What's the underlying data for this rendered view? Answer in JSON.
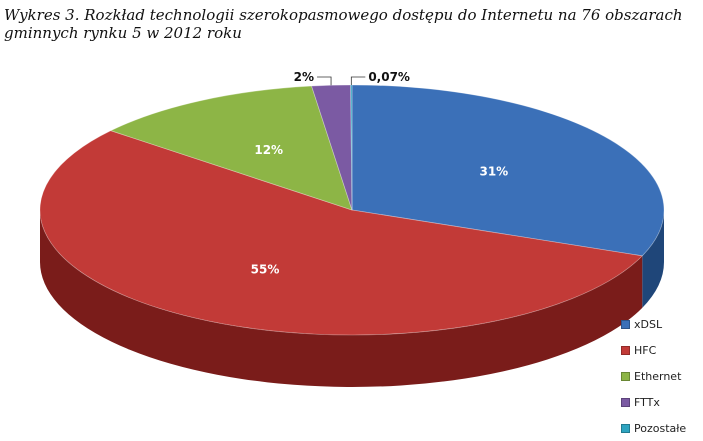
{
  "caption": "Wykres 3. Rozkład technologii szerokopasmowego dostępu do Internetu na 76 obszarach gminnych rynku 5 w 2012 roku",
  "chart_data": {
    "type": "pie",
    "title": "Wykres 3. Rozkład technologii szerokopasmowego dostępu do Internetu na 76 obszarach gminnych rynku 5 w 2012 roku",
    "labels": [
      "xDSL",
      "HFC",
      "Ethernet",
      "FTTx",
      "Pozostałe"
    ],
    "values": [
      31,
      55,
      12,
      2,
      0.07
    ],
    "data_labels": [
      "31%",
      "55%",
      "12%",
      "2%",
      "0,07%"
    ],
    "colors": [
      "#3b70b8",
      "#c23a37",
      "#8db546",
      "#7b5aa3",
      "#2ea4c0"
    ],
    "side_colors": [
      "#1f4679",
      "#7a1c1a",
      "#5a7a28",
      "#4a3066",
      "#1c6a7d"
    ],
    "legend_position": "right"
  }
}
